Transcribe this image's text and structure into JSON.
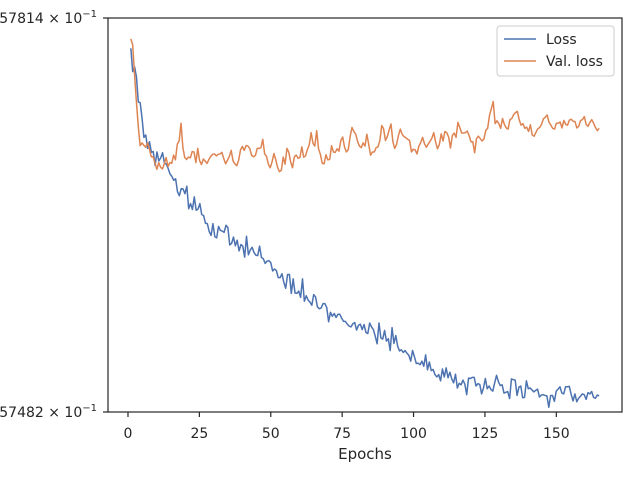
{
  "colors": {
    "loss": "#4c72b0",
    "val_loss": "#dd8452",
    "axes": "#262626",
    "legend_border": "#cccccc"
  },
  "chart_data": {
    "type": "line",
    "title": "",
    "xlabel": "Epochs",
    "ylabel": "",
    "xlim": [
      -7,
      173
    ],
    "ylim": [
      0,
      1
    ],
    "xticks": [
      0,
      25,
      50,
      75,
      100,
      125,
      150
    ],
    "yticks": [
      {
        "value": 1,
        "prefix": "57814",
        "mant": "10",
        "exp": "−1"
      },
      {
        "value": 0,
        "prefix": "57482",
        "mant": "10",
        "exp": "−1"
      }
    ],
    "grid": false,
    "legend": {
      "placement": "top-right"
    },
    "series": [
      {
        "name": "Loss",
        "color_key": "loss",
        "x_start": 1,
        "values": [
          0.923,
          0.864,
          0.876,
          0.851,
          0.787,
          0.785,
          0.746,
          0.697,
          0.703,
          0.669,
          0.686,
          0.659,
          0.661,
          0.626,
          0.66,
          0.637,
          0.645,
          0.658,
          0.632,
          0.629,
          0.618,
          0.604,
          0.598,
          0.588,
          0.592,
          0.559,
          0.549,
          0.567,
          0.566,
          0.554,
          0.573,
          0.516,
          0.529,
          0.514,
          0.546,
          0.512,
          0.515,
          0.529,
          0.501,
          0.499,
          0.479,
          0.478,
          0.458,
          0.448,
          0.478,
          0.445,
          0.442,
          0.471,
          0.461,
          0.459,
          0.456,
          0.474,
          0.468,
          0.424,
          0.428,
          0.444,
          0.422,
          0.436,
          0.409,
          0.425,
          0.421,
          0.393,
          0.446,
          0.399,
          0.411,
          0.418,
          0.405,
          0.398,
          0.397,
          0.421,
          0.392,
          0.389,
          0.377,
          0.383,
          0.384,
          0.379,
          0.358,
          0.363,
          0.359,
          0.341,
          0.341,
          0.351,
          0.329,
          0.314,
          0.349,
          0.349,
          0.301,
          0.338,
          0.302,
          0.301,
          0.307,
          0.291,
          0.338,
          0.281,
          0.295,
          0.284,
          0.279,
          0.271,
          0.298,
          0.292,
          0.267,
          0.262,
          0.264,
          0.275,
          0.275,
          0.265,
          0.229,
          0.253,
          0.243,
          0.25,
          0.24,
          0.248,
          0.248,
          0.238,
          0.23,
          0.23,
          0.223,
          0.218,
          0.216,
          0.224,
          0.227,
          0.208,
          0.22,
          0.223,
          0.209,
          0.222,
          0.202,
          0.199,
          0.226,
          0.216,
          0.209,
          0.192,
          0.173,
          0.226,
          0.188,
          0.185,
          0.207,
          0.18,
          0.186,
          0.156,
          0.214,
          0.174,
          0.194,
          0.167,
          0.155,
          0.158,
          0.151,
          0.156,
          0.149,
          0.144,
          0.129,
          0.156,
          0.14,
          0.123,
          0.124,
          0.12,
          0.129,
          0.116,
          0.145,
          0.107,
          0.127,
          0.105,
          0.108,
          0.095,
          0.089,
          0.095,
          0.079,
          0.109,
          0.089,
          0.112,
          0.087,
          0.101,
          0.084,
          0.074,
          0.096,
          0.061,
          0.073,
          0.069,
          0.081,
          0.071,
          0.044,
          0.086,
          0.085,
          0.088,
          0.088,
          0.066,
          0.072,
          0.07,
          0.046,
          0.061,
          0.085,
          0.059,
          0.066,
          0.057,
          0.053,
          0.074,
          0.093,
          0.077,
          0.067,
          0.069,
          0.048,
          0.05,
          0.052,
          0.034,
          0.084,
          0.082,
          0.081,
          0.042,
          0.063,
          0.066,
          0.036,
          0.037,
          0.079,
          0.059,
          0.061,
          0.056,
          0.051,
          0.055,
          0.058,
          0.038,
          0.043,
          0.044,
          0.042,
          0.041,
          0.012,
          0.042,
          0.042,
          0.027,
          0.053,
          0.058,
          0.064,
          0.048,
          0.046,
          0.064,
          0.064,
          0.065,
          0.045,
          0.028,
          0.046,
          0.026,
          0.035,
          0.04,
          0.046,
          0.044,
          0.032,
          0.049,
          0.046,
          0.052,
          0.037,
          0.035,
          0.043,
          0.041
        ]
      },
      {
        "name": "Val. loss",
        "color_key": "val_loss",
        "x_start": 1,
        "values": [
          0.947,
          0.932,
          0.855,
          0.787,
          0.725,
          0.676,
          0.683,
          0.677,
          0.672,
          0.683,
          0.667,
          0.648,
          0.648,
          0.632,
          0.616,
          0.633,
          0.621,
          0.617,
          0.63,
          0.646,
          0.623,
          0.633,
          0.631,
          0.652,
          0.64,
          0.68,
          0.688,
          0.733,
          0.671,
          0.646,
          0.641,
          0.647,
          0.645,
          0.661,
          0.66,
          0.633,
          0.669,
          0.638,
          0.628,
          0.642,
          0.637,
          0.631,
          0.641,
          0.649,
          0.654,
          0.655,
          0.65,
          0.654,
          0.655,
          0.659,
          0.643,
          0.63,
          0.639,
          0.649,
          0.664,
          0.637,
          0.63,
          0.625,
          0.639,
          0.665,
          0.674,
          0.664,
          0.676,
          0.675,
          0.669,
          0.651,
          0.648,
          0.651,
          0.669,
          0.669,
          0.671,
          0.692,
          0.655,
          0.649,
          0.629,
          0.62,
          0.635,
          0.656,
          0.64,
          0.62,
          0.61,
          0.614,
          0.647,
          0.629,
          0.669,
          0.659,
          0.635,
          0.62,
          0.648,
          0.652,
          0.644,
          0.646,
          0.673,
          0.647,
          0.65,
          0.666,
          0.678,
          0.709,
          0.682,
          0.675,
          0.714,
          0.668,
          0.654,
          0.631,
          0.63,
          0.653,
          0.64,
          0.641,
          0.676,
          0.66,
          0.659,
          0.668,
          0.662,
          0.689,
          0.698,
          0.672,
          0.66,
          0.666,
          0.699,
          0.722,
          0.712,
          0.705,
          0.687,
          0.675,
          0.671,
          0.683,
          0.675,
          0.705,
          0.679,
          0.652,
          0.66,
          0.66,
          0.671,
          0.673,
          0.689,
          0.727,
          0.719,
          0.689,
          0.699,
          0.716,
          0.731,
          0.686,
          0.669,
          0.679,
          0.702,
          0.718,
          0.705,
          0.699,
          0.696,
          0.692,
          0.689,
          0.66,
          0.667,
          0.665,
          0.655,
          0.675,
          0.684,
          0.697,
          0.681,
          0.672,
          0.68,
          0.687,
          0.695,
          0.709,
          0.685,
          0.668,
          0.679,
          0.706,
          0.688,
          0.712,
          0.709,
          0.698,
          0.67,
          0.702,
          0.708,
          0.697,
          0.735,
          0.722,
          0.708,
          0.708,
          0.709,
          0.713,
          0.702,
          0.686,
          0.686,
          0.658,
          0.694,
          0.7,
          0.694,
          0.688,
          0.693,
          0.715,
          0.72,
          0.753,
          0.77,
          0.788,
          0.732,
          0.739,
          0.732,
          0.72,
          0.745,
          0.73,
          0.721,
          0.718,
          0.742,
          0.745,
          0.755,
          0.76,
          0.763,
          0.741,
          0.728,
          0.732,
          0.72,
          0.723,
          0.712,
          0.729,
          0.703,
          0.7,
          0.71,
          0.719,
          0.722,
          0.73,
          0.744,
          0.748,
          0.754,
          0.736,
          0.728,
          0.72,
          0.718,
          0.733,
          0.733,
          0.736,
          0.721,
          0.74,
          0.73,
          0.728,
          0.741,
          0.743,
          0.738,
          0.737,
          0.721,
          0.725,
          0.74,
          0.742,
          0.75,
          0.73,
          0.725,
          0.735,
          0.742,
          0.733,
          0.722,
          0.714,
          0.72
        ]
      }
    ]
  }
}
